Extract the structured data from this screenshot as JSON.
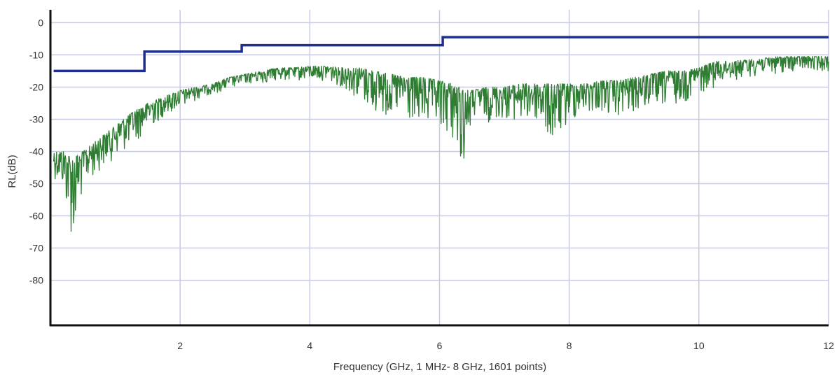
{
  "chart_data": {
    "type": "line",
    "title": "",
    "xlabel": "Frequency (GHz, 1 MHz- 8 GHz, 1601 points)",
    "ylabel": "RL(dB)",
    "xlim": [
      0,
      12
    ],
    "ylim": [
      -94,
      4
    ],
    "x_ticks": [
      2,
      4,
      6,
      8,
      10,
      12
    ],
    "x_tick_labels": [
      "2",
      "4",
      "6",
      "8",
      "10",
      "12"
    ],
    "y_ticks": [
      0,
      -10,
      -20,
      -30,
      -40,
      -50,
      -60,
      -70,
      -80
    ],
    "y_tick_labels": [
      "0",
      "-10",
      "-20",
      "-30",
      "-40",
      "-50",
      "-60",
      "-70",
      "-80"
    ],
    "grid": true,
    "legend": "none",
    "series": [
      {
        "role": "limit",
        "color": "#1f2f8f",
        "style": "step",
        "x": [
          0.05,
          1.45,
          1.45,
          2.95,
          2.95,
          6.05,
          6.05,
          12.0
        ],
        "y": [
          -15,
          -15,
          -9,
          -9,
          -7,
          -7,
          -4.5,
          -4.5
        ]
      },
      {
        "role": "measured",
        "color": "#2e7d32",
        "style": "noisy-line",
        "points_count": 1601,
        "x": [
          0.05,
          0.2,
          0.35,
          0.5,
          0.75,
          1.0,
          1.25,
          1.5,
          1.75,
          2.0,
          2.25,
          2.5,
          2.75,
          3.0,
          3.25,
          3.5,
          3.75,
          4.0,
          4.25,
          4.5,
          4.75,
          5.0,
          5.25,
          5.5,
          5.75,
          6.0,
          6.2,
          6.3,
          6.4,
          6.5,
          6.75,
          7.0,
          7.25,
          7.5,
          7.75,
          8.0,
          8.25,
          8.5,
          8.75,
          9.0,
          9.25,
          9.5,
          9.75,
          10.0,
          10.25,
          10.5,
          10.75,
          11.0,
          11.25,
          11.5,
          11.75,
          12.0
        ],
        "y_top": [
          -40,
          -40,
          -42,
          -40,
          -36,
          -32,
          -28,
          -25,
          -23,
          -21,
          -20,
          -19,
          -17,
          -16,
          -15,
          -14,
          -14,
          -13.5,
          -13.5,
          -14,
          -14,
          -15,
          -16,
          -17,
          -17,
          -18,
          -19,
          -20,
          -21,
          -21,
          -20,
          -20,
          -19,
          -19,
          -19,
          -19,
          -19,
          -18,
          -18,
          -17,
          -16,
          -15,
          -15,
          -14,
          -12,
          -12,
          -11.5,
          -11,
          -10.5,
          -10.5,
          -10.5,
          -10.5
        ],
        "y_bottom": [
          -48,
          -52,
          -70,
          -52,
          -46,
          -42,
          -38,
          -34,
          -29,
          -27,
          -24,
          -22,
          -21,
          -19,
          -19,
          -18,
          -18,
          -18,
          -18,
          -20,
          -24,
          -28,
          -30,
          -31,
          -33,
          -34,
          -36,
          -45,
          -44,
          -30,
          -31,
          -30,
          -31,
          -31,
          -39,
          -31,
          -28,
          -28,
          -30,
          -28,
          -27,
          -26,
          -25,
          -22,
          -20,
          -18,
          -17,
          -16,
          -16,
          -15,
          -15,
          -15
        ]
      }
    ]
  }
}
